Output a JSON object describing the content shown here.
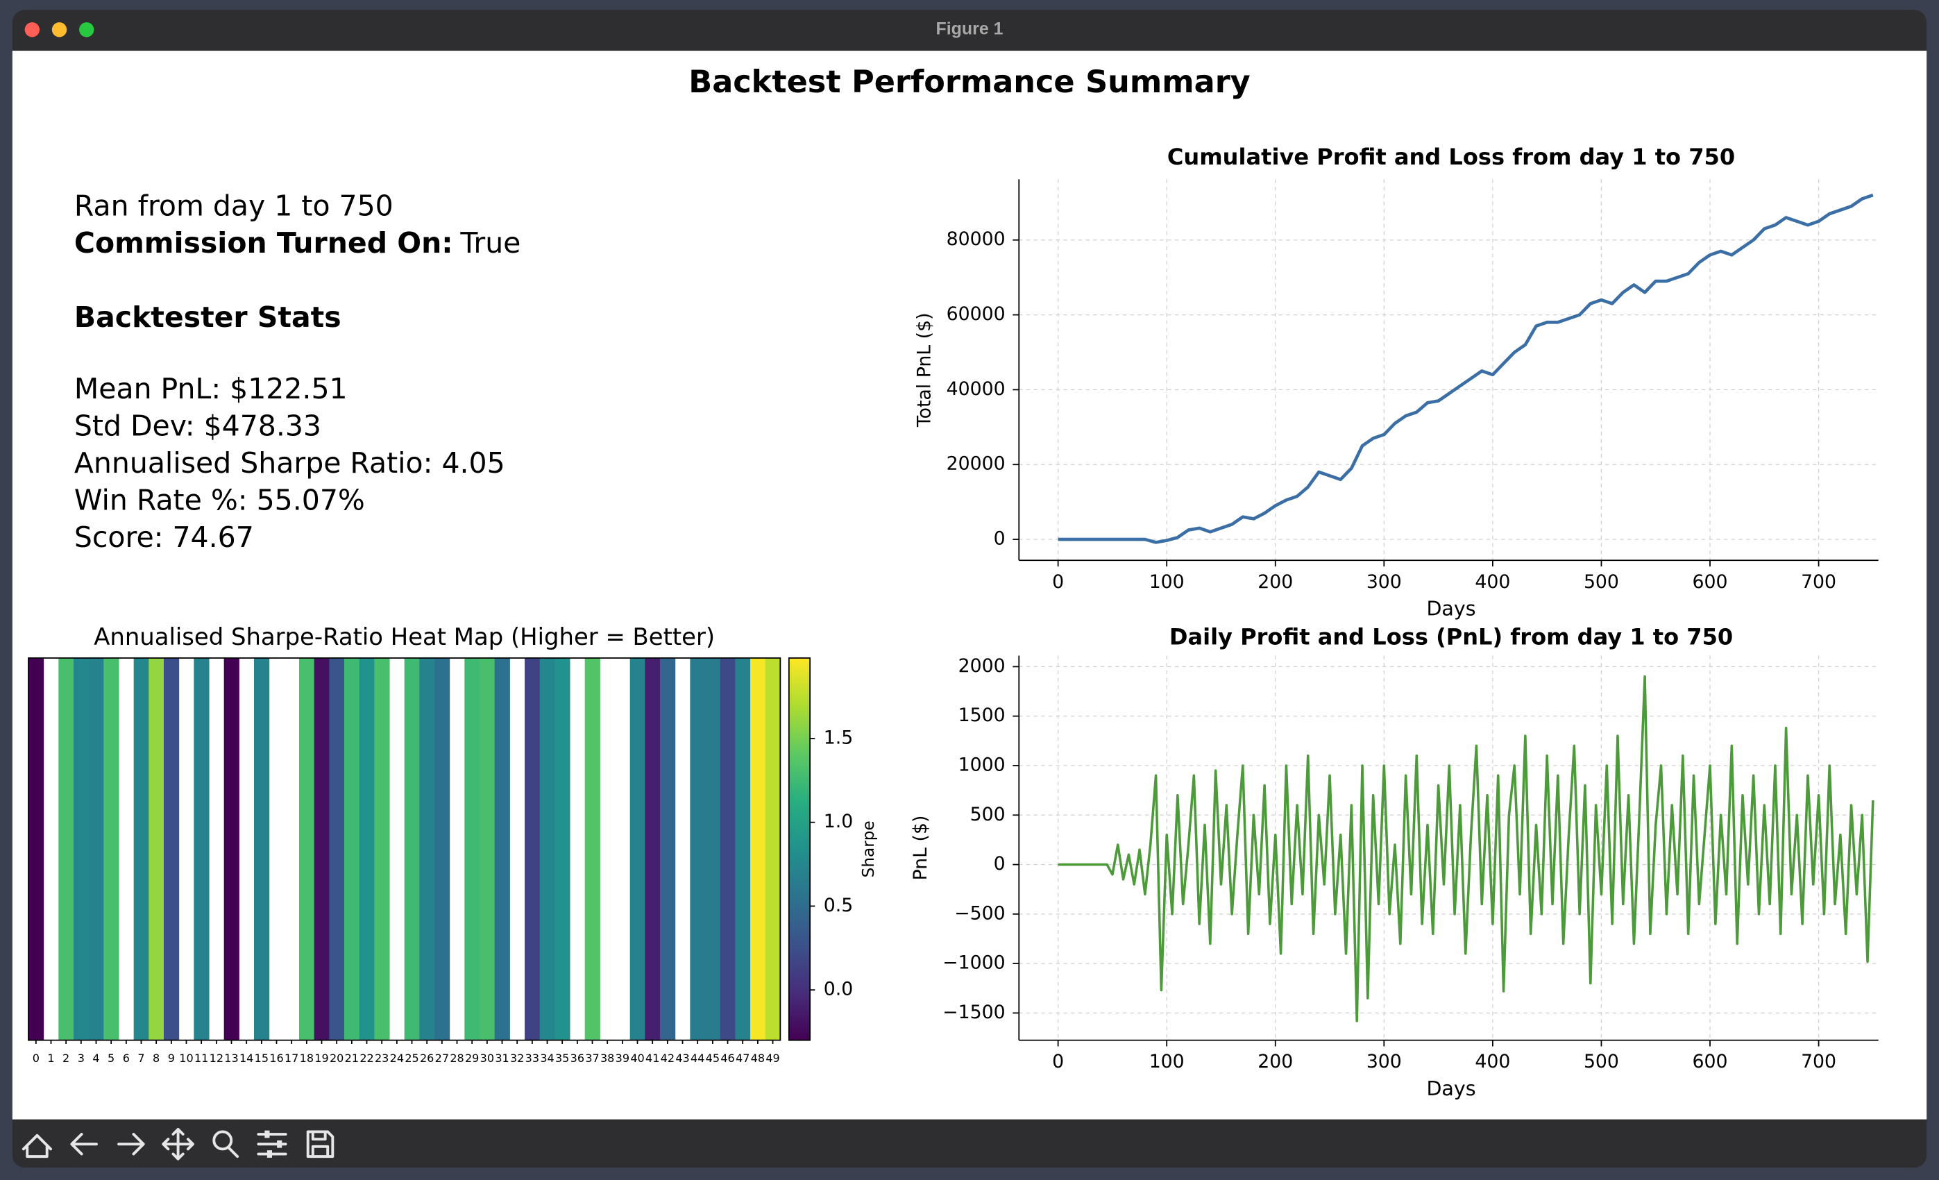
{
  "window": {
    "title": "Figure 1"
  },
  "figure": {
    "title": "Backtest Performance Summary"
  },
  "stats": {
    "run_range": "Ran from day 1 to 750",
    "commission_label": "Commission Turned On:",
    "commission_value": "True",
    "heading": "Backtester Stats",
    "lines": [
      "Mean PnL: $122.51",
      "Std Dev: $478.33",
      "Annualised Sharpe Ratio: 4.05",
      "Win Rate %: 55.07%",
      "Score: 74.67"
    ]
  },
  "chart_data": [
    {
      "type": "heatmap",
      "title": "Annualised Sharpe-Ratio Heat Map (Higher = Better)",
      "categories": [
        "0",
        "1",
        "2",
        "3",
        "4",
        "5",
        "6",
        "7",
        "8",
        "9",
        "10",
        "11",
        "12",
        "13",
        "14",
        "15",
        "16",
        "17",
        "18",
        "19",
        "20",
        "21",
        "22",
        "23",
        "24",
        "25",
        "26",
        "27",
        "28",
        "29",
        "30",
        "31",
        "32",
        "33",
        "34",
        "35",
        "36",
        "37",
        "38",
        "39",
        "40",
        "41",
        "42",
        "43",
        "44",
        "45",
        "46",
        "47",
        "48",
        "49"
      ],
      "values": [
        -0.3,
        null,
        1.3,
        0.75,
        0.7,
        1.3,
        null,
        0.75,
        1.6,
        0.25,
        null,
        0.7,
        null,
        -0.3,
        null,
        0.7,
        null,
        null,
        1.3,
        -0.2,
        0.3,
        1.25,
        0.85,
        1.3,
        null,
        1.25,
        0.7,
        0.55,
        null,
        1.25,
        1.3,
        0.55,
        null,
        0.15,
        0.75,
        0.85,
        null,
        1.35,
        null,
        null,
        0.7,
        -0.1,
        0.45,
        null,
        0.65,
        0.65,
        0.2,
        0.7,
        1.95,
        1.75
      ],
      "colormap": "viridis",
      "colorbar_label": "Sharpe",
      "colorbar_lim": [
        -0.3,
        1.98
      ],
      "colorbar_ticks": [
        {
          "value": 0,
          "label": "0.0"
        },
        {
          "value": 0.5,
          "label": "0.5"
        },
        {
          "value": 1,
          "label": "1.0"
        },
        {
          "value": 1.5,
          "label": "1.5"
        }
      ]
    },
    {
      "type": "line",
      "title": "Cumulative Profit and Loss from day 1 to 750",
      "xlabel": "Days",
      "ylabel": "Total PnL ($)",
      "color": "#3a6ea5",
      "grid": true,
      "x": [
        0,
        10,
        20,
        30,
        40,
        50,
        60,
        70,
        80,
        90,
        100,
        110,
        120,
        130,
        140,
        150,
        160,
        170,
        180,
        190,
        200,
        210,
        220,
        230,
        240,
        250,
        260,
        270,
        280,
        290,
        300,
        310,
        320,
        330,
        340,
        350,
        360,
        370,
        380,
        390,
        400,
        410,
        420,
        430,
        440,
        450,
        460,
        470,
        480,
        490,
        500,
        510,
        520,
        530,
        540,
        550,
        560,
        570,
        580,
        590,
        600,
        610,
        620,
        630,
        640,
        650,
        660,
        670,
        680,
        690,
        700,
        710,
        720,
        730,
        740,
        750
      ],
      "values": [
        0,
        0,
        0,
        0,
        0,
        0,
        0,
        0,
        0,
        -800,
        -300,
        500,
        2500,
        3000,
        2000,
        3000,
        4000,
        6000,
        5500,
        7000,
        9000,
        10500,
        11500,
        14000,
        18000,
        17000,
        16000,
        19000,
        25000,
        27000,
        28000,
        31000,
        33000,
        34000,
        36500,
        37000,
        39000,
        41000,
        43000,
        45000,
        44000,
        47000,
        50000,
        52000,
        57000,
        58000,
        58000,
        59000,
        60000,
        63000,
        64000,
        63000,
        66000,
        68000,
        66000,
        69000,
        69000,
        70000,
        71000,
        74000,
        76000,
        77000,
        76000,
        78000,
        80000,
        83000,
        84000,
        86000,
        85000,
        84000,
        85000,
        87000,
        88000,
        89000,
        91000,
        92000
      ],
      "xlim": [
        -36,
        755
      ],
      "ylim": [
        -5600,
        96200
      ],
      "xticks": [
        0,
        100,
        200,
        300,
        400,
        500,
        600,
        700
      ],
      "yticks": [
        0,
        20000,
        40000,
        60000,
        80000
      ]
    },
    {
      "type": "line",
      "title": "Daily Profit and Loss (PnL) from day 1 to 750",
      "xlabel": "Days",
      "ylabel": "PnL ($)",
      "color": "#4c9a3a",
      "grid": true,
      "x": [
        0,
        5,
        10,
        15,
        20,
        25,
        30,
        35,
        40,
        45,
        50,
        55,
        60,
        65,
        70,
        75,
        80,
        85,
        90,
        95,
        100,
        105,
        110,
        115,
        120,
        125,
        130,
        135,
        140,
        145,
        150,
        155,
        160,
        165,
        170,
        175,
        180,
        185,
        190,
        195,
        200,
        205,
        210,
        215,
        220,
        225,
        230,
        235,
        240,
        245,
        250,
        255,
        260,
        265,
        270,
        275,
        280,
        285,
        290,
        295,
        300,
        305,
        310,
        315,
        320,
        325,
        330,
        335,
        340,
        345,
        350,
        355,
        360,
        365,
        370,
        375,
        380,
        385,
        390,
        395,
        400,
        405,
        410,
        415,
        420,
        425,
        430,
        435,
        440,
        445,
        450,
        455,
        460,
        465,
        470,
        475,
        480,
        485,
        490,
        495,
        500,
        505,
        510,
        515,
        520,
        525,
        530,
        535,
        540,
        545,
        550,
        555,
        560,
        565,
        570,
        575,
        580,
        585,
        590,
        595,
        600,
        605,
        610,
        615,
        620,
        625,
        630,
        635,
        640,
        645,
        650,
        655,
        660,
        665,
        670,
        675,
        680,
        685,
        690,
        695,
        700,
        705,
        710,
        715,
        720,
        725,
        730,
        735,
        740,
        745,
        750
      ],
      "values": [
        0,
        0,
        0,
        0,
        0,
        0,
        0,
        0,
        0,
        0,
        -100,
        200,
        -150,
        100,
        -200,
        150,
        -300,
        200,
        900,
        -1270,
        300,
        -500,
        700,
        -400,
        200,
        900,
        -600,
        400,
        -800,
        950,
        -200,
        600,
        -500,
        300,
        1000,
        -700,
        500,
        -300,
        800,
        -600,
        300,
        -900,
        1000,
        -400,
        600,
        -300,
        1100,
        -700,
        500,
        -200,
        900,
        -500,
        300,
        -900,
        600,
        -1580,
        1000,
        -1350,
        700,
        -400,
        1000,
        -500,
        200,
        -800,
        900,
        -300,
        1100,
        -600,
        400,
        -700,
        800,
        -200,
        1000,
        -500,
        600,
        -900,
        300,
        1200,
        -400,
        700,
        -600,
        900,
        -1280,
        500,
        1000,
        -300,
        1300,
        -700,
        400,
        -500,
        1100,
        -400,
        900,
        -800,
        300,
        1200,
        -500,
        800,
        -1200,
        600,
        -300,
        1000,
        -600,
        1300,
        -400,
        700,
        -800,
        500,
        1900,
        -700,
        400,
        1000,
        -500,
        600,
        -300,
        1100,
        -700,
        900,
        -400,
        300,
        1000,
        -600,
        500,
        -300,
        1200,
        -800,
        700,
        -200,
        900,
        -500,
        600,
        -400,
        1000,
        -700,
        1380,
        -300,
        500,
        -600,
        900,
        -200,
        700,
        -500,
        1000,
        -400,
        300,
        -700,
        600,
        -300,
        500,
        -980,
        650
      ],
      "xlim": [
        -36,
        755
      ],
      "ylim": [
        -1775,
        2112
      ],
      "xticks": [
        0,
        100,
        200,
        300,
        400,
        500,
        600,
        700
      ],
      "yticks": [
        {
          "value": -1500,
          "label": "−1500"
        },
        {
          "value": -1000,
          "label": "−1000"
        },
        {
          "value": -500,
          "label": "−500"
        },
        0,
        500,
        1000,
        1500,
        2000
      ]
    }
  ]
}
